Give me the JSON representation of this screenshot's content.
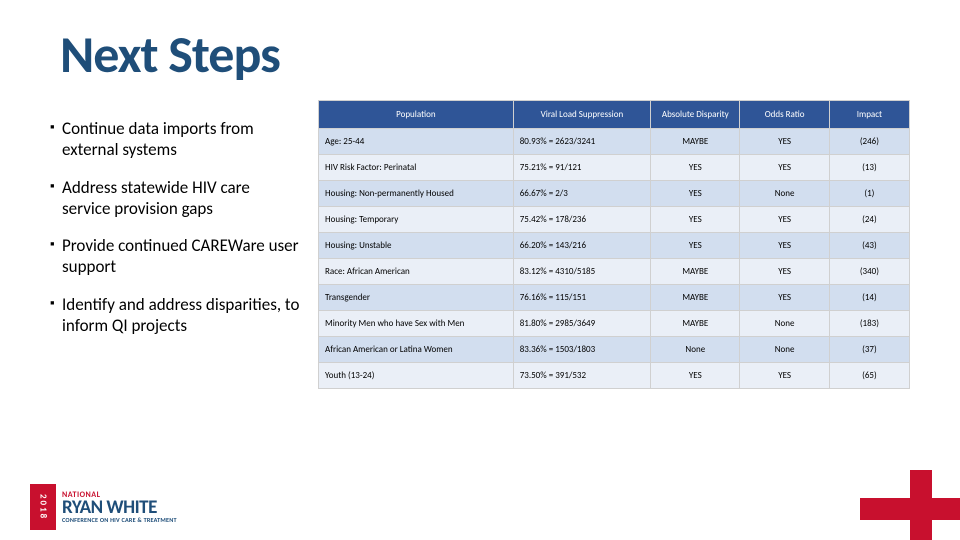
{
  "title": "Next Steps",
  "bullets": [
    "Continue data imports from external systems",
    "Address statewide HIV care service provision gaps",
    "Provide continued CAREWare user support",
    "Identify and address disparities, to inform QI projects"
  ],
  "table": {
    "columns": [
      "Population",
      "Viral Load Suppression",
      "Absolute Disparity",
      "Odds Ratio",
      "Impact"
    ],
    "col_widths": [
      "170px",
      "120px",
      "78px",
      "78px",
      "70px"
    ],
    "header_bg": "#2f5597",
    "header_fg": "#ffffff",
    "band_colors": [
      "#d2deef",
      "#eaeff7"
    ],
    "border_color": "#d0d0d0",
    "font_size_pt": 7,
    "rows": [
      {
        "population": "Age: 25-44",
        "vls": "80.93% = 2623/3241",
        "disparity": "MAYBE",
        "odds": "YES",
        "impact": "(246)"
      },
      {
        "population": "HIV Risk Factor: Perinatal",
        "vls": "75.21% = 91/121",
        "disparity": "YES",
        "odds": "YES",
        "impact": "(13)"
      },
      {
        "population": "Housing: Non-permanently Housed",
        "vls": "66.67% = 2/3",
        "disparity": "YES",
        "odds": "None",
        "impact": "(1)"
      },
      {
        "population": "Housing: Temporary",
        "vls": "75.42% = 178/236",
        "disparity": "YES",
        "odds": "YES",
        "impact": "(24)"
      },
      {
        "population": "Housing: Unstable",
        "vls": "66.20% = 143/216",
        "disparity": "YES",
        "odds": "YES",
        "impact": "(43)"
      },
      {
        "population": "Race: African American",
        "vls": "83.12% = 4310/5185",
        "disparity": "MAYBE",
        "odds": "YES",
        "impact": "(340)"
      },
      {
        "population": "Transgender",
        "vls": "76.16% = 115/151",
        "disparity": "MAYBE",
        "odds": "YES",
        "impact": "(14)"
      },
      {
        "population": "Minority Men who have Sex with Men",
        "vls": "81.80% = 2985/3649",
        "disparity": "MAYBE",
        "odds": "None",
        "impact": "(183)"
      },
      {
        "population": "African American or Latina Women",
        "vls": "83.36% = 1503/1803",
        "disparity": "None",
        "odds": "None",
        "impact": "(37)"
      },
      {
        "population": "Youth (13-24)",
        "vls": "73.50% = 391/532",
        "disparity": "YES",
        "odds": "YES",
        "impact": "(65)"
      }
    ]
  },
  "logo": {
    "year": "2018",
    "national": "NATIONAL",
    "main": "RYAN WHITE",
    "sub": "CONFERENCE ON HIV CARE & TREATMENT",
    "red": "#c8102e",
    "blue": "#1f4e79"
  }
}
